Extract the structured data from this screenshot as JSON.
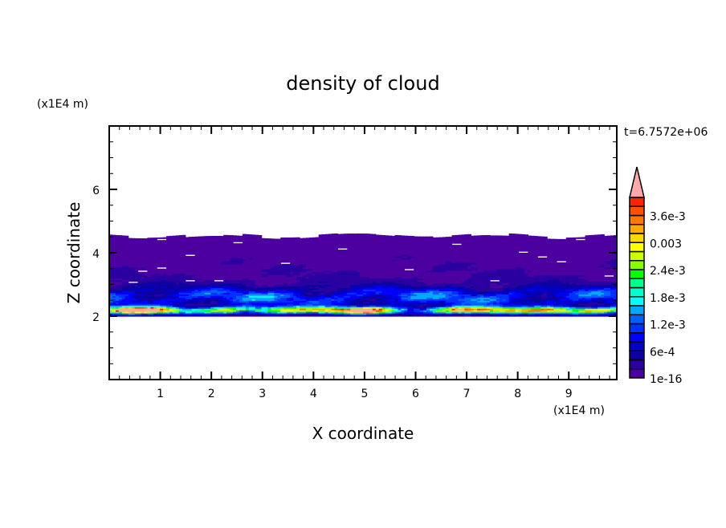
{
  "chart_data": {
    "type": "heatmap",
    "title": "density of cloud",
    "xlabel": "X coordinate",
    "ylabel": "Z coordinate",
    "x_unit": "(x1E4 m)",
    "y_unit": "(x1E4 m)",
    "time_label": "t=6.7572e+06",
    "xlim": [
      0,
      9.94
    ],
    "ylim": [
      0,
      8
    ],
    "x_ticks": [
      1,
      2,
      3,
      4,
      5,
      6,
      7,
      8,
      9
    ],
    "x_tick_labels": [
      "1",
      "2",
      "3",
      "4",
      "5",
      "6",
      "7",
      "8",
      "9"
    ],
    "y_ticks": [
      2,
      4,
      6
    ],
    "y_tick_labels": [
      "2",
      "4",
      "6"
    ],
    "grid": false,
    "cloud_layer_z": [
      2.0,
      4.6
    ],
    "colorbar": {
      "levels_min": 0,
      "levels_max": 0.004,
      "level_step": 0.0002,
      "labels": [
        "1e-16",
        "6e-4",
        "1.2e-3",
        "1.8e-3",
        "2.4e-3",
        "0.003",
        "3.6e-3"
      ],
      "label_levels": [
        0,
        3,
        6,
        9,
        12,
        15,
        18
      ],
      "colors": [
        "#4c00a0",
        "#2a00a0",
        "#0e00a0",
        "#0000c8",
        "#0000ff",
        "#0030ff",
        "#0060ff",
        "#00a8ff",
        "#00ffff",
        "#00ffcc",
        "#00ff88",
        "#00ff00",
        "#88ff00",
        "#ccff00",
        "#ffff00",
        "#ffd700",
        "#ffaa00",
        "#ff7700",
        "#ff5000",
        "#ff2200"
      ],
      "over_color": "#ffaaaa"
    }
  }
}
